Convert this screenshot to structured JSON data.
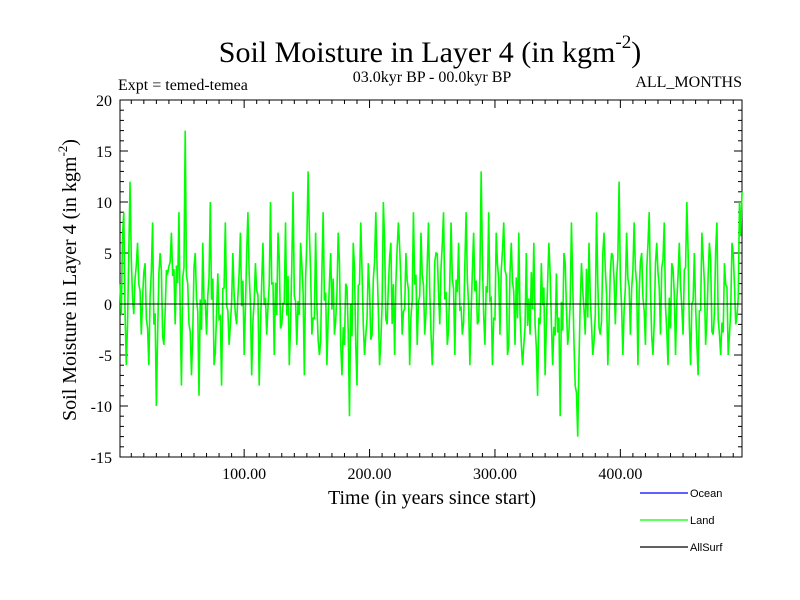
{
  "chart_data": {
    "type": "line",
    "title": "Soil Moisture in Layer 4 (in kgm",
    "title_superscript": "-2",
    "title_close": ")",
    "subtitle_left": "Expt = temed-temea",
    "subtitle_center": "03.0kyr BP - 00.0kyr BP",
    "subtitle_right": "ALL_MONTHS",
    "xlabel": "Time (in years since start)",
    "ylabel": "Soil Moisture in Layer 4 (in kgm",
    "ylabel_superscript": "-2",
    "ylabel_close": ")",
    "xlim": [
      1,
      497
    ],
    "ylim": [
      -15,
      20
    ],
    "xticks": [
      100,
      200,
      300,
      400
    ],
    "xtick_labels": [
      "100.00",
      "200.00",
      "300.00",
      "400.00"
    ],
    "yticks": [
      -15,
      -10,
      -5,
      0,
      5,
      10,
      15,
      20
    ],
    "ytick_labels": [
      "-15",
      "-10",
      "-5",
      "0",
      "5",
      "10",
      "15",
      "20"
    ],
    "zero_line": true,
    "series": [
      {
        "name": "Land",
        "color": "#00ff00",
        "n_points": 497,
        "anchors": [
          [
            1,
            2
          ],
          [
            4,
            9
          ],
          [
            6,
            -6
          ],
          [
            9,
            12
          ],
          [
            12,
            -1
          ],
          [
            15,
            6
          ],
          [
            18,
            -3
          ],
          [
            21,
            4
          ],
          [
            24,
            -6
          ],
          [
            27,
            8
          ],
          [
            30,
            -10
          ],
          [
            33,
            5
          ],
          [
            36,
            -4
          ],
          [
            39,
            3
          ],
          [
            42,
            7
          ],
          [
            45,
            -2
          ],
          [
            48,
            9
          ],
          [
            50,
            -8
          ],
          [
            53,
            17
          ],
          [
            55,
            2
          ],
          [
            58,
            -7
          ],
          [
            61,
            5
          ],
          [
            64,
            -9
          ],
          [
            67,
            6
          ],
          [
            70,
            -3
          ],
          [
            73,
            10
          ],
          [
            76,
            -6
          ],
          [
            79,
            3
          ],
          [
            82,
            -8
          ],
          [
            85,
            8
          ],
          [
            88,
            -4
          ],
          [
            91,
            5
          ],
          [
            94,
            -2
          ],
          [
            97,
            7
          ],
          [
            100,
            -5
          ],
          [
            103,
            9
          ],
          [
            106,
            -7
          ],
          [
            109,
            4
          ],
          [
            112,
            -8
          ],
          [
            115,
            6
          ],
          [
            118,
            -3
          ],
          [
            121,
            10
          ],
          [
            124,
            -5
          ],
          [
            127,
            7
          ],
          [
            130,
            -2
          ],
          [
            133,
            8
          ],
          [
            136,
            -6
          ],
          [
            139,
            11
          ],
          [
            142,
            -4
          ],
          [
            145,
            6
          ],
          [
            148,
            -7
          ],
          [
            151,
            13
          ],
          [
            154,
            -3
          ],
          [
            157,
            7
          ],
          [
            160,
            -5
          ],
          [
            163,
            9
          ],
          [
            166,
            -6
          ],
          [
            169,
            5
          ],
          [
            172,
            -3
          ],
          [
            175,
            7
          ],
          [
            178,
            -7
          ],
          [
            181,
            2
          ],
          [
            184,
            -11
          ],
          [
            187,
            6
          ],
          [
            190,
            -8
          ],
          [
            193,
            8
          ],
          [
            196,
            -5
          ],
          [
            199,
            4
          ],
          [
            202,
            -3
          ],
          [
            205,
            9
          ],
          [
            208,
            -6
          ],
          [
            211,
            10
          ],
          [
            214,
            -2
          ],
          [
            217,
            6
          ],
          [
            220,
            -5
          ],
          [
            223,
            8
          ],
          [
            226,
            -3
          ],
          [
            229,
            5
          ],
          [
            232,
            -6
          ],
          [
            235,
            9
          ],
          [
            238,
            -4
          ],
          [
            241,
            7
          ],
          [
            244,
            -3
          ],
          [
            247,
            8
          ],
          [
            250,
            -6
          ],
          [
            253,
            5
          ],
          [
            256,
            -2
          ],
          [
            259,
            9
          ],
          [
            262,
            -4
          ],
          [
            265,
            8
          ],
          [
            268,
            -5
          ],
          [
            271,
            6
          ],
          [
            274,
            -3
          ],
          [
            277,
            9
          ],
          [
            280,
            -6
          ],
          [
            283,
            7
          ],
          [
            286,
            -2
          ],
          [
            289,
            13
          ],
          [
            292,
            -4
          ],
          [
            295,
            9
          ],
          [
            298,
            -6
          ],
          [
            301,
            7
          ],
          [
            304,
            -3
          ],
          [
            307,
            8
          ],
          [
            310,
            -5
          ],
          [
            313,
            6
          ],
          [
            316,
            -4
          ],
          [
            319,
            7
          ],
          [
            322,
            -6
          ],
          [
            325,
            5
          ],
          [
            328,
            -3
          ],
          [
            331,
            6
          ],
          [
            334,
            -9
          ],
          [
            337,
            4
          ],
          [
            340,
            -7
          ],
          [
            343,
            6
          ],
          [
            346,
            -6
          ],
          [
            349,
            3
          ],
          [
            352,
            -11
          ],
          [
            355,
            5
          ],
          [
            358,
            -4
          ],
          [
            361,
            8
          ],
          [
            364,
            -8
          ],
          [
            366,
            -13
          ],
          [
            369,
            4
          ],
          [
            372,
            -3
          ],
          [
            375,
            6
          ],
          [
            378,
            -5
          ],
          [
            381,
            9
          ],
          [
            384,
            -3
          ],
          [
            387,
            7
          ],
          [
            390,
            -6
          ],
          [
            393,
            5
          ],
          [
            396,
            -2
          ],
          [
            399,
            12
          ],
          [
            402,
            -5
          ],
          [
            405,
            7
          ],
          [
            408,
            -3
          ],
          [
            411,
            8
          ],
          [
            414,
            -6
          ],
          [
            417,
            5
          ],
          [
            420,
            -4
          ],
          [
            423,
            9
          ],
          [
            426,
            -5
          ],
          [
            429,
            6
          ],
          [
            432,
            -3
          ],
          [
            435,
            8
          ],
          [
            438,
            -6
          ],
          [
            441,
            4
          ],
          [
            444,
            -5
          ],
          [
            447,
            6
          ],
          [
            450,
            -3
          ],
          [
            453,
            10
          ],
          [
            456,
            -6
          ],
          [
            459,
            5
          ],
          [
            462,
            -7
          ],
          [
            465,
            7
          ],
          [
            468,
            -4
          ],
          [
            471,
            6
          ],
          [
            474,
            -3
          ],
          [
            477,
            8
          ],
          [
            480,
            -5
          ],
          [
            483,
            4
          ],
          [
            486,
            -5
          ],
          [
            489,
            6
          ],
          [
            492,
            -2
          ],
          [
            495,
            10
          ],
          [
            497,
            11
          ]
        ]
      }
    ],
    "legend": [
      {
        "name": "Ocean",
        "color": "#0000ff"
      },
      {
        "name": "Land",
        "color": "#00ff00"
      },
      {
        "name": "AllSurf",
        "color": "#000000"
      }
    ],
    "legend_position": "bottom-right"
  }
}
